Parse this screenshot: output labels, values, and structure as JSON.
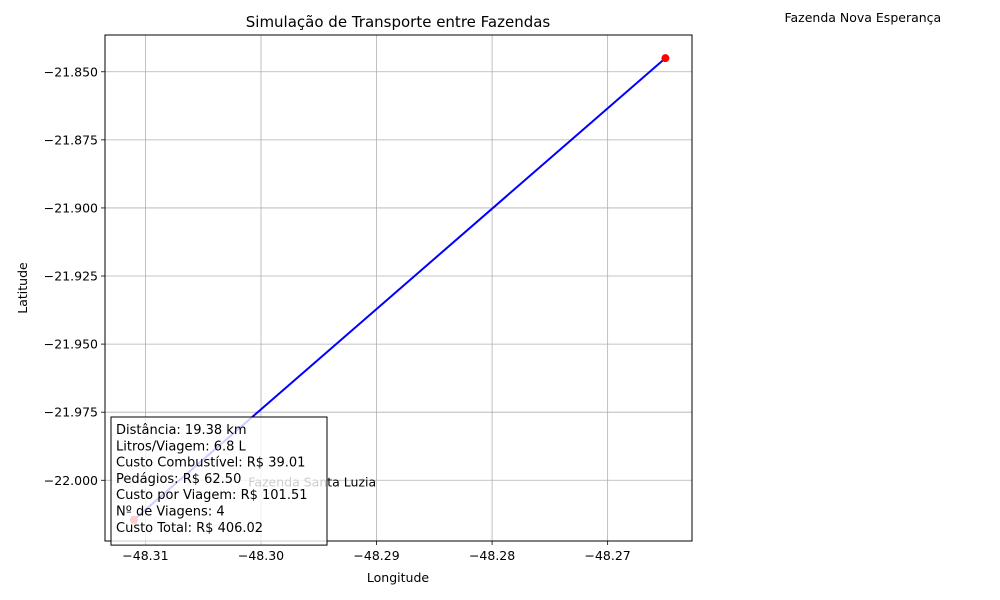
{
  "chart_data": {
    "type": "line",
    "title": "Simulação de Transporte entre Fazendas",
    "xlabel": "Longitude",
    "ylabel": "Latitude",
    "xlim": [
      -48.3135,
      -48.2627
    ],
    "ylim": [
      -22.0223,
      -21.8365
    ],
    "xticks": [
      -48.31,
      -48.3,
      -48.29,
      -48.28,
      -48.27
    ],
    "xtick_labels": [
      "−48.31",
      "−48.30",
      "−48.29",
      "−48.28",
      "−48.27"
    ],
    "yticks": [
      -21.85,
      -21.875,
      -21.9,
      -21.925,
      -21.95,
      -21.975,
      -22.0
    ],
    "ytick_labels": [
      "−21.850",
      "−21.875",
      "−21.900",
      "−21.925",
      "−21.950",
      "−21.975",
      "−22.000"
    ],
    "grid": true,
    "route": {
      "color": "#0000ff",
      "x": [
        -48.311,
        -48.265
      ],
      "y": [
        -22.0145,
        -21.845
      ]
    },
    "points": [
      {
        "x": -48.311,
        "y": -22.0145,
        "color": "#ff0000"
      },
      {
        "x": -48.265,
        "y": -21.845,
        "color": "#ff0000"
      }
    ],
    "annotations": [
      {
        "text": "Fazenda Santa Luzia",
        "x": -48.3011,
        "y": -22.0022
      },
      {
        "text": "Fazenda Nova Esperança",
        "x": -48.2547,
        "y": -21.8318
      }
    ],
    "info_box": {
      "placement": "bottom-left",
      "lines": [
        "Distância: 19.38 km",
        "Litros/Viagem: 6.8 L",
        "Custo Combustível: R$ 39.01",
        "Pedágios: R$ 62.50",
        "Custo por Viagem: R$ 101.51",
        "Nº de Viagens: 4",
        "Custo Total: R$ 406.02"
      ]
    }
  }
}
